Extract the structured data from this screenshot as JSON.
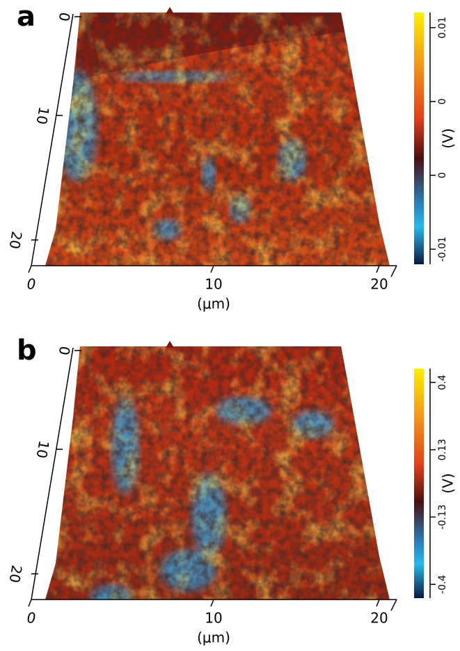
{
  "panels": [
    {
      "label": "a",
      "x_ticks": [
        "0",
        "10",
        "20"
      ],
      "y_ticks": [
        "0",
        "10",
        "20"
      ],
      "x_label": "(μm)",
      "colorbar": {
        "label": "(V)",
        "ticks": [
          "0.01",
          "0",
          "0",
          "-0.01"
        ]
      }
    },
    {
      "label": "b",
      "x_ticks": [
        "0",
        "10",
        "20"
      ],
      "y_ticks": [
        "0",
        "10",
        "20"
      ],
      "x_label": "(μm)",
      "colorbar": {
        "label": "(V)",
        "ticks": [
          "0.4",
          "0.13",
          "-0.13",
          "-0.4"
        ]
      }
    }
  ]
}
